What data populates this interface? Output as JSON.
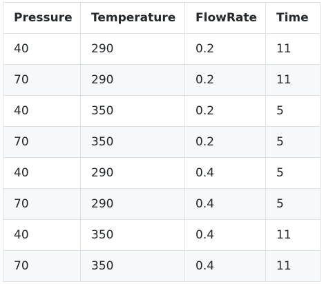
{
  "table": {
    "headers": [
      "Pressure",
      "Temperature",
      "FlowRate",
      "Time"
    ],
    "rows": [
      [
        "40",
        "290",
        "0.2",
        "11"
      ],
      [
        "70",
        "290",
        "0.2",
        "11"
      ],
      [
        "40",
        "350",
        "0.2",
        "5"
      ],
      [
        "70",
        "350",
        "0.2",
        "5"
      ],
      [
        "40",
        "290",
        "0.4",
        "5"
      ],
      [
        "70",
        "290",
        "0.4",
        "5"
      ],
      [
        "40",
        "350",
        "0.4",
        "11"
      ],
      [
        "70",
        "350",
        "0.4",
        "11"
      ]
    ]
  },
  "colors": {
    "border": "#dfe2e5",
    "stripe": "#f6f8fa",
    "text": "#24292e"
  }
}
